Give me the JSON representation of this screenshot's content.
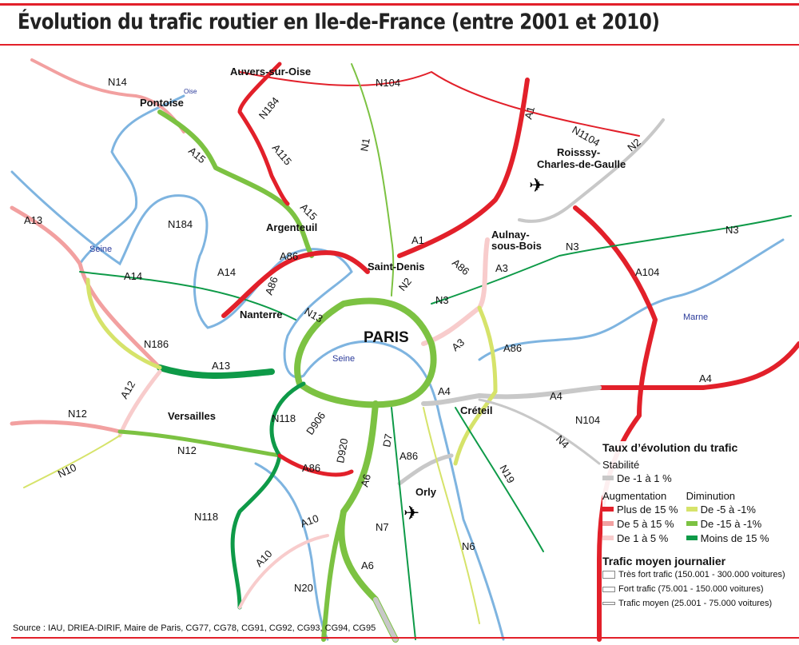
{
  "title": "Évolution du trafic routier en Ile-de-France (entre 2001 et 2010)",
  "source": "Source : IAU, DRIEA-DIRIF, Maire de Paris, CG77, CG78, CG91, CG92, CG93, CG94, CG95",
  "colors": {
    "plus15": "#e2202a",
    "p5_15": "#f2a0a0",
    "p1_5": "#f8cccc",
    "stable": "#c8c8c8",
    "m5_1": "#d6e36a",
    "m15_1": "#7cc242",
    "moins15": "#0e9a48",
    "river": "#7eb4e0"
  },
  "places": {
    "pontoise": "Pontoise",
    "oise": "Oise",
    "auvers": "Auvers-sur-Oise",
    "roissy1": "Roisssy-",
    "roissy2": "Charles-de-Gaulle",
    "argenteuil": "Argenteuil",
    "saint_denis": "Saint-Denis",
    "aulnay1": "Aulnay-",
    "aulnay2": "sous-Bois",
    "nanterre": "Nanterre",
    "paris": "PARIS",
    "versailles": "Versailles",
    "creteil": "Créteil",
    "orly": "Orly",
    "seine": "Seine",
    "marne": "Marne"
  },
  "roads": {
    "n14": "N14",
    "n184": "N184",
    "a115": "A115",
    "a15": "A15",
    "n104": "N104",
    "n1": "N1",
    "a1": "A1",
    "n1104": "N1104",
    "n2": "N2",
    "a13": "A13",
    "a14": "A14",
    "a86": "A86",
    "a3": "A3",
    "n3": "N3",
    "a104": "A104",
    "n13": "N13",
    "a4": "A4",
    "n186": "N186",
    "a12": "A12",
    "n12": "N12",
    "n118": "N118",
    "d906": "D906",
    "d920": "D920",
    "a6": "A6",
    "d7": "D7",
    "n4": "N4",
    "n19": "N19",
    "n10": "N10",
    "n7": "N7",
    "n6": "N6",
    "a10": "A10",
    "n20": "N20"
  },
  "legend": {
    "title": "Taux d’évolution du trafic",
    "stability": "Stabilité",
    "stable": "De -1 à 1 %",
    "increase": "Augmentation",
    "decrease": "Diminution",
    "plus15": "Plus de 15 %",
    "p5_15": "De 5 à 15 %",
    "p1_5": "De 1 à 5 %",
    "m5_1": "De -5 à -1%",
    "m15_1": "De -15 à -1%",
    "moins15": "Moins de 15 %",
    "traffic_title": "Trafic moyen journalier",
    "t1": "Très fort trafic (150.001 - 300.000 voitures)",
    "t2": "Fort trafic (75.001 - 150.000 voitures)",
    "t3": "Trafic moyen (25.001 - 75.000 voitures)"
  }
}
